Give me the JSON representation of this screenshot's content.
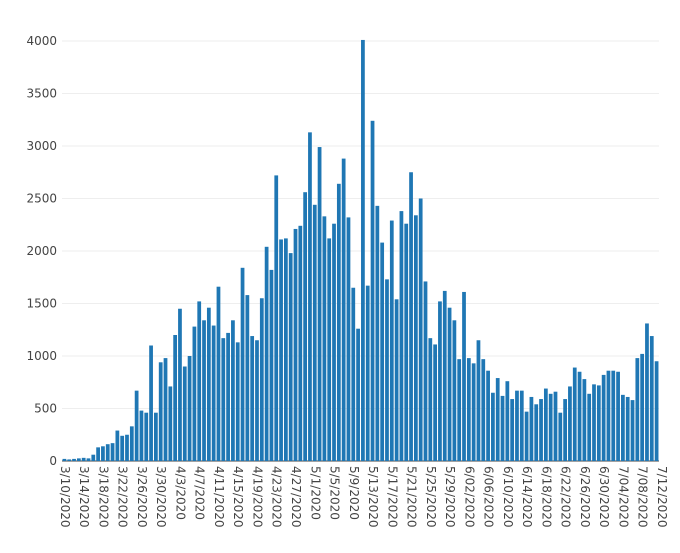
{
  "chart_data": {
    "type": "bar",
    "title": "",
    "xlabel": "",
    "ylabel": "",
    "ylim": [
      0,
      4000
    ],
    "yticks": [
      0,
      500,
      1000,
      1500,
      2000,
      2500,
      3000,
      3500,
      4000
    ],
    "ytick_labels": [
      "0",
      "500",
      "1000",
      "1500",
      "2000",
      "2500",
      "3000",
      "3500",
      "4000"
    ],
    "x_start": "3/10/2020",
    "xticks": [
      "3/10/2020",
      "3/14/2020",
      "3/18/2020",
      "3/22/2020",
      "3/26/2020",
      "3/30/2020",
      "4/3/2020",
      "4/7/2020",
      "4/11/2020",
      "4/15/2020",
      "4/19/2020",
      "4/23/2020",
      "4/27/2020",
      "5/1/2020",
      "5/5/2020",
      "5/9/2020",
      "5/13/2020",
      "5/17/2020",
      "5/21/2020",
      "5/25/2020",
      "5/29/2020",
      "6/02/2020",
      "6/06/2020",
      "6/10/2020",
      "6/14/2020",
      "6/18/2020",
      "6/22/2020",
      "6/26/2020",
      "6/30/2020",
      "7/04/2020",
      "7/08/2020",
      "7/12/2020"
    ],
    "grid": true,
    "bar_color": "#1f77b4",
    "values": [
      20,
      15,
      20,
      25,
      30,
      25,
      60,
      130,
      140,
      160,
      170,
      290,
      240,
      250,
      330,
      670,
      480,
      460,
      1100,
      460,
      940,
      980,
      710,
      1200,
      1450,
      900,
      1000,
      1280,
      1520,
      1340,
      1460,
      1290,
      1660,
      1170,
      1220,
      1340,
      1130,
      1840,
      1580,
      1190,
      1150,
      1550,
      2040,
      1820,
      2720,
      2110,
      2120,
      1980,
      2210,
      2240,
      2560,
      3130,
      2440,
      2990,
      2330,
      2120,
      2260,
      2640,
      2880,
      2320,
      1650,
      1260,
      4010,
      1670,
      3240,
      2430,
      2080,
      1730,
      2290,
      1540,
      2380,
      2260,
      2750,
      2340,
      2500,
      1710,
      1170,
      1110,
      1520,
      1620,
      1460,
      1340,
      970,
      1610,
      980,
      930,
      1150,
      970,
      860,
      650,
      790,
      620,
      760,
      590,
      670,
      670,
      470,
      610,
      540,
      590,
      690,
      640,
      660,
      460,
      590,
      710,
      890,
      850,
      780,
      640,
      730,
      720,
      820,
      860,
      860,
      850,
      630,
      610,
      580,
      980,
      1020,
      1310,
      1190,
      950
    ]
  }
}
